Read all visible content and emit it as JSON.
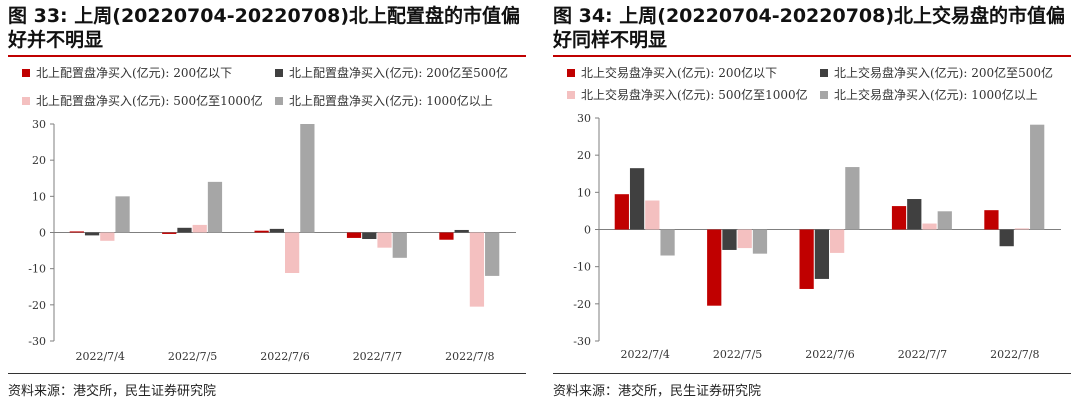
{
  "panels": [
    {
      "title": "图 33: 上周(20220704-20220708)北上配置盘的市值偏好并不明显",
      "source": "资料来源：港交所，民生证券研究院",
      "chart_data": {
        "type": "bar",
        "categories": [
          "2022/7/4",
          "2022/7/5",
          "2022/7/6",
          "2022/7/7",
          "2022/7/8"
        ],
        "ylim": [
          -30,
          30
        ],
        "yticks": [
          -30,
          -20,
          -10,
          0,
          10,
          20,
          30
        ],
        "xlabel": "",
        "ylabel": "",
        "series": [
          {
            "name": "北上配置盘净买入(亿元): 200亿以下",
            "color": "#c00000",
            "values": [
              0.3,
              -0.4,
              0.5,
              -1.5,
              -2.0
            ]
          },
          {
            "name": "北上配置盘净买入(亿元): 200亿至500亿",
            "color": "#404040",
            "values": [
              -0.8,
              1.3,
              1.0,
              -1.8,
              0.7
            ]
          },
          {
            "name": "北上配置盘净买入(亿元): 500亿至1000亿",
            "color": "#f4c0c0",
            "values": [
              -2.3,
              2.1,
              -11.2,
              -4.2,
              -20.5
            ]
          },
          {
            "name": "北上配置盘净买入(亿元): 1000亿以上",
            "color": "#a6a6a6",
            "values": [
              10.0,
              14.0,
              30.0,
              -7.0,
              -12.0
            ]
          }
        ]
      }
    },
    {
      "title": "图 34: 上周(20220704-20220708)北上交易盘的市值偏好同样不明显",
      "source": "资料来源：港交所，民生证券研究院",
      "chart_data": {
        "type": "bar",
        "categories": [
          "2022/7/4",
          "2022/7/5",
          "2022/7/6",
          "2022/7/7",
          "2022/7/8"
        ],
        "ylim": [
          -30,
          30
        ],
        "yticks": [
          -30,
          -20,
          -10,
          0,
          10,
          20,
          30
        ],
        "xlabel": "",
        "ylabel": "",
        "series": [
          {
            "name": "北上交易盘净买入(亿元): 200亿以下",
            "color": "#c00000",
            "values": [
              9.5,
              -20.5,
              -16.0,
              6.3,
              5.2
            ]
          },
          {
            "name": "北上交易盘净买入(亿元): 200亿至500亿",
            "color": "#404040",
            "values": [
              16.5,
              -5.5,
              -13.3,
              8.2,
              -4.5
            ]
          },
          {
            "name": "北上交易盘净买入(亿元): 500亿至1000亿",
            "color": "#f4c0c0",
            "values": [
              7.8,
              -5.0,
              -6.3,
              1.6,
              0.3
            ]
          },
          {
            "name": "北上交易盘净买入(亿元): 1000亿以上",
            "color": "#a6a6a6",
            "values": [
              -7.0,
              -6.5,
              16.8,
              4.9,
              28.2
            ]
          }
        ]
      }
    }
  ]
}
